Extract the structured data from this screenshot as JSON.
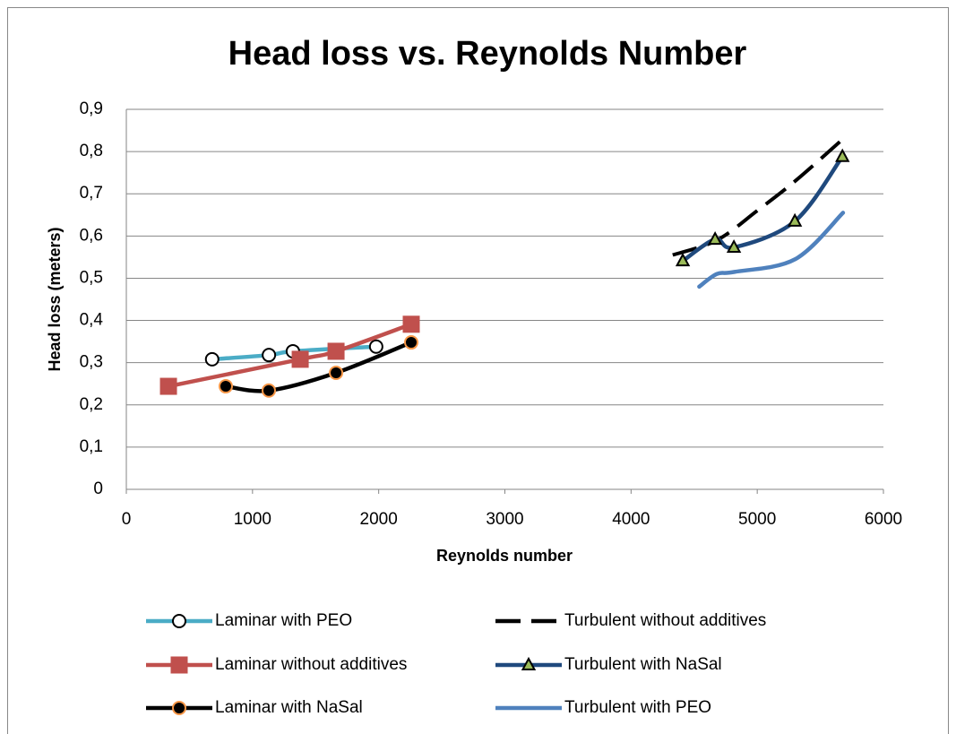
{
  "chart_data": {
    "type": "scatter",
    "title": "Head loss vs. Reynolds Number",
    "x_label": "Reynolds number",
    "y_label": "Head loss (meters)",
    "xlim": [
      0,
      6000
    ],
    "xticks": [
      0,
      1000,
      2000,
      3000,
      4000,
      5000,
      6000
    ],
    "ylim": [
      0,
      0.9
    ],
    "yticks": [
      0,
      {
        "value": 0.1,
        "label": "0,1"
      },
      {
        "value": 0.2,
        "label": "0,2"
      },
      {
        "value": 0.3,
        "label": "0,3"
      },
      {
        "value": 0.4,
        "label": "0,4"
      },
      {
        "value": 0.5,
        "label": "0,5"
      },
      {
        "value": 0.6,
        "label": "0,6"
      },
      {
        "value": 0.7,
        "label": "0,7"
      },
      {
        "value": 0.8,
        "label": "0,8"
      },
      {
        "value": 0.9,
        "label": "0,9"
      }
    ],
    "grid": true,
    "legend": "bottom",
    "series": [
      {
        "name": "Laminar with PEO",
        "color": "#4bacc6",
        "marker": "circle",
        "marker_fill": "#ffffff",
        "marker_stroke": "#000000",
        "dash": false,
        "x": [
          680,
          1130,
          1320,
          1980
        ],
        "values": [
          0.308,
          0.318,
          0.327,
          0.338
        ]
      },
      {
        "name": "Laminar without additives",
        "color": "#c0504d",
        "marker": "square",
        "marker_fill": "#c0504d",
        "marker_stroke": "#c0504d",
        "dash": false,
        "x": [
          334,
          1378,
          1662,
          2258
        ],
        "values": [
          0.244,
          0.308,
          0.327,
          0.391
        ]
      },
      {
        "name": "Laminar with NaSal",
        "color": "#000000",
        "marker": "circle",
        "marker_fill": "#000000",
        "marker_stroke": "#f79646",
        "dash": false,
        "x": [
          788,
          1129,
          1662,
          2258
        ],
        "values": [
          0.244,
          0.234,
          0.276,
          0.348
        ]
      },
      {
        "name": "Turbulent without additives",
        "color": "#000000",
        "marker": "none",
        "dash": true,
        "x": [
          4330,
          4680,
          5000,
          5300,
          5680
        ],
        "values": [
          0.555,
          0.59,
          0.66,
          0.73,
          0.83
        ]
      },
      {
        "name": "Turbulent with NaSal",
        "color": "#1f497d",
        "marker": "triangle",
        "marker_fill": "#9bbb59",
        "marker_stroke": "#000000",
        "dash": false,
        "x": [
          4410,
          4666,
          4815,
          5298,
          5675
        ],
        "values": [
          0.541,
          0.592,
          0.573,
          0.635,
          0.788
        ]
      },
      {
        "name": "Turbulent with PEO",
        "color": "#4f81bd",
        "marker": "none",
        "dash": false,
        "x": [
          4540,
          4680,
          4820,
          5300,
          5680
        ],
        "values": [
          0.48,
          0.51,
          0.515,
          0.545,
          0.655
        ]
      }
    ]
  }
}
